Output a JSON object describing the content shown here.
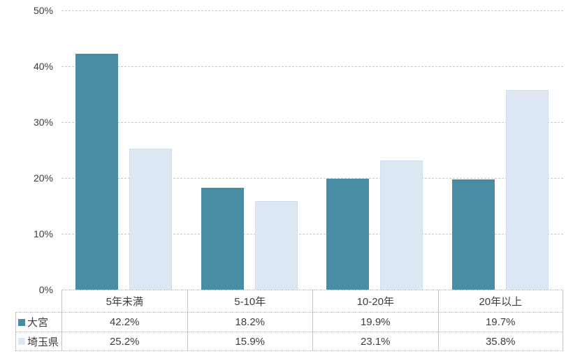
{
  "chart_data": {
    "type": "bar",
    "title": "",
    "xlabel": "",
    "ylabel": "",
    "categories": [
      "5年未満",
      "5-10年",
      "10-20年",
      "20年以上"
    ],
    "series": [
      {
        "name": "大宮",
        "color": "#4A8CA4",
        "values": [
          42.2,
          18.2,
          19.9,
          19.7
        ]
      },
      {
        "name": "埼玉県",
        "color": "#DDE8F4",
        "values": [
          25.2,
          15.9,
          23.1,
          35.8
        ]
      }
    ],
    "ylim": [
      0,
      50
    ],
    "yticks": [
      0,
      10,
      20,
      30,
      40,
      50
    ],
    "ytick_labels": [
      "0%",
      "10%",
      "20%",
      "30%",
      "40%",
      "50%"
    ],
    "grid": "horizontal-dashed",
    "legend_position": "data-table-left"
  },
  "table": {
    "header": [
      "5年未満",
      "5-10年",
      "10-20年",
      "20年以上"
    ],
    "rows": [
      {
        "label": "大宮",
        "swatch_color": "#4A8CA4",
        "cells": [
          "42.2%",
          "18.2%",
          "19.9%",
          "19.7%"
        ]
      },
      {
        "label": "埼玉県",
        "swatch_color": "#DDE8F4",
        "cells": [
          "25.2%",
          "15.9%",
          "23.1%",
          "35.8%"
        ]
      }
    ]
  },
  "colors": {
    "series_dark": "#4A8CA4",
    "series_light": "#DDE8F4",
    "gridline": "#c9c9c9",
    "table_border_horizontal": "#b3b3b3",
    "table_border_vertical": "#c6c6c6",
    "text": "#3d3d3d",
    "background": "#ffffff"
  }
}
